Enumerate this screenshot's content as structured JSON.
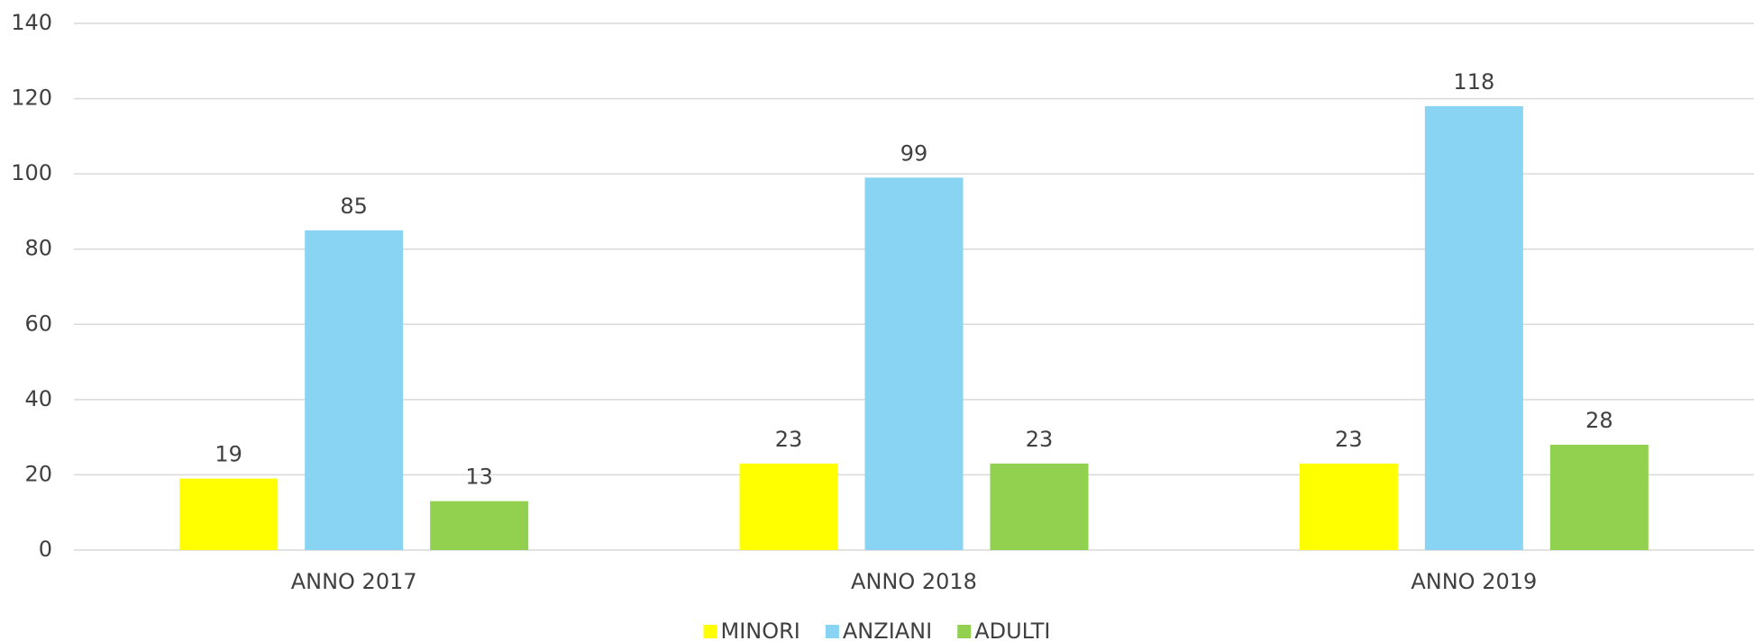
{
  "chart_data": {
    "type": "bar",
    "categories": [
      "ANNO 2017",
      "ANNO 2018",
      "ANNO 2019"
    ],
    "series": [
      {
        "name": "MINORI",
        "color": "#ffff00",
        "values": [
          19,
          23,
          23
        ]
      },
      {
        "name": "ANZIANI",
        "color": "#89d4f2",
        "values": [
          85,
          99,
          118
        ]
      },
      {
        "name": "ADULTI",
        "color": "#92d050",
        "values": [
          13,
          23,
          28
        ]
      }
    ],
    "ylim": [
      0,
      140
    ],
    "yticks": [
      0,
      20,
      40,
      60,
      80,
      100,
      120,
      140
    ],
    "grid": true,
    "legend": "bottom"
  }
}
